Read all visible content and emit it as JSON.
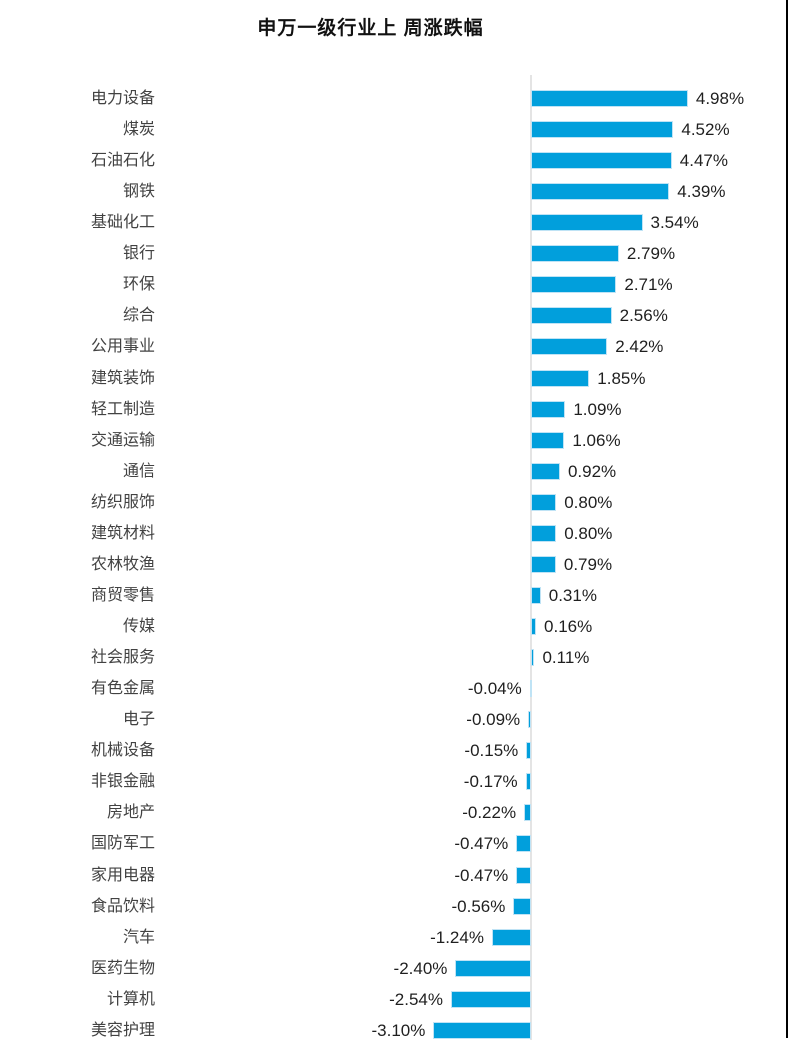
{
  "page": {
    "title": "申万一级行业上 周涨跌幅"
  },
  "chart_data": {
    "type": "bar",
    "orientation": "horizontal",
    "title": "申万一级行业上 周涨跌幅",
    "xlabel": "",
    "ylabel": "",
    "unit": "%",
    "grid": false,
    "legend": false,
    "xlim": [
      -3.5,
      5.5
    ],
    "categories": [
      "电力设备",
      "煤炭",
      "石油石化",
      "钢铁",
      "基础化工",
      "银行",
      "环保",
      "综合",
      "公用事业",
      "建筑装饰",
      "轻工制造",
      "交通运输",
      "通信",
      "纺织服饰",
      "建筑材料",
      "农林牧渔",
      "商贸零售",
      "传媒",
      "社会服务",
      "有色金属",
      "电子",
      "机械设备",
      "非银金融",
      "房地产",
      "国防军工",
      "家用电器",
      "食品饮料",
      "汽车",
      "医药生物",
      "计算机",
      "美容护理"
    ],
    "values": [
      4.98,
      4.52,
      4.47,
      4.39,
      3.54,
      2.79,
      2.71,
      2.56,
      2.42,
      1.85,
      1.09,
      1.06,
      0.92,
      0.8,
      0.8,
      0.79,
      0.31,
      0.16,
      0.11,
      -0.04,
      -0.09,
      -0.15,
      -0.17,
      -0.22,
      -0.47,
      -0.47,
      -0.56,
      -1.24,
      -2.4,
      -2.54,
      -3.1
    ],
    "value_labels": [
      "4.98%",
      "4.52%",
      "4.47%",
      "4.39%",
      "3.54%",
      "2.79%",
      "2.71%",
      "2.56%",
      "2.42%",
      "1.85%",
      "1.09%",
      "1.06%",
      "0.92%",
      "0.80%",
      "0.80%",
      "0.79%",
      "0.31%",
      "0.16%",
      "0.11%",
      "-0.04%",
      "-0.09%",
      "-0.15%",
      "-0.17%",
      "-0.22%",
      "-0.47%",
      "-0.47%",
      "-0.56%",
      "-1.24%",
      "-2.40%",
      "-2.54%",
      "-3.10%"
    ]
  },
  "colors": {
    "bar_fill": "#019FDC",
    "bar_edge": "#bfe3f5",
    "axis_line": "#e4e4e4",
    "category_text": "#424242",
    "value_text": "#1f1f1f",
    "title_text": "#111111",
    "right_border": "#000000"
  }
}
